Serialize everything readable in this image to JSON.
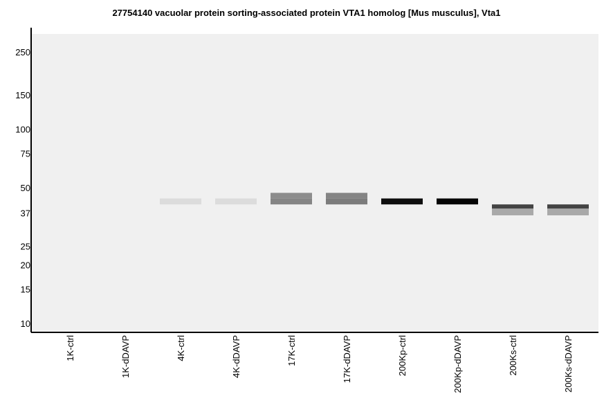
{
  "chart_data": {
    "type": "heatmap",
    "title": "27754140 vacuolar protein sorting-associated protein VTA1 homolog [Mus musculus], Vta1",
    "y_scale": "log",
    "y_ticks": [
      250,
      150,
      100,
      75,
      50,
      37,
      25,
      20,
      15,
      10
    ],
    "lanes": [
      "1K-ctrl",
      "1K-dDAVP",
      "4K-ctrl",
      "4K-dDAVP",
      "17K-ctrl",
      "17K-dDAVP",
      "200Kp-ctrl",
      "200Kp-dDAVP",
      "200Ks-ctrl",
      "200Ks-dDAVP"
    ],
    "bands": [
      {
        "lane": "4K-ctrl",
        "kda_top": 44,
        "kda_bottom": 41,
        "color": "#dcdcdc"
      },
      {
        "lane": "4K-dDAVP",
        "kda_top": 44,
        "kda_bottom": 41,
        "color": "#dcdcdc"
      },
      {
        "lane": "17K-ctrl",
        "kda_top": 47,
        "kda_bottom": 44,
        "color": "#8c8c8c"
      },
      {
        "lane": "17K-ctrl",
        "kda_top": 44,
        "kda_bottom": 41,
        "color": "#858585"
      },
      {
        "lane": "17K-dDAVP",
        "kda_top": 47,
        "kda_bottom": 44,
        "color": "#848484"
      },
      {
        "lane": "17K-dDAVP",
        "kda_top": 44,
        "kda_bottom": 41,
        "color": "#7c7c7c"
      },
      {
        "lane": "200Kp-ctrl",
        "kda_top": 44,
        "kda_bottom": 41,
        "color": "#0e0e0e"
      },
      {
        "lane": "200Kp-dDAVP",
        "kda_top": 44,
        "kda_bottom": 41,
        "color": "#050505"
      },
      {
        "lane": "200Ks-ctrl",
        "kda_top": 41,
        "kda_bottom": 39,
        "color": "#434343"
      },
      {
        "lane": "200Ks-ctrl",
        "kda_top": 39,
        "kda_bottom": 36,
        "color": "#a9a9a9"
      },
      {
        "lane": "200Ks-dDAVP",
        "kda_top": 41,
        "kda_bottom": 39,
        "color": "#434343"
      },
      {
        "lane": "200Ks-dDAVP",
        "kda_top": 39,
        "kda_bottom": 36,
        "color": "#a9a9a9"
      }
    ],
    "background_color": "#f0f0f0"
  }
}
